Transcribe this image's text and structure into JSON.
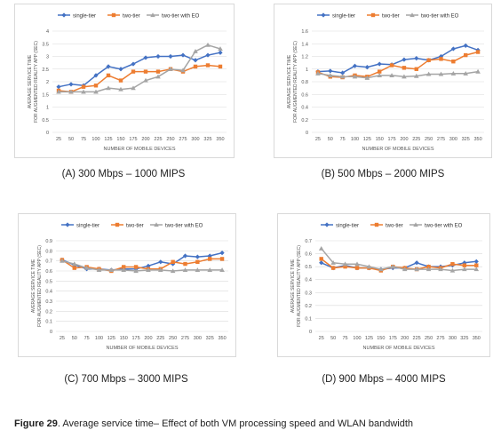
{
  "figure": {
    "label": "Figure 29",
    "text": ". Average service time– Effect of both VM processing speed and WLAN bandwidth"
  },
  "colors": {
    "single-tier": "#4472C4",
    "two-tier": "#ED7D31",
    "two-tier with EO": "#A5A5A5"
  },
  "chart_data": [
    {
      "type": "line",
      "caption": "(A) 300 Mbps – 1000 MIPS",
      "ylabel": "AVERAGE SERVICE TIME FOR AUGMENTED REALITY APP (SEC)",
      "ylabel_lines": [
        "AVERAGE SERVICE TIME",
        "FOR AUGMENTED REALITY APP (SEC)"
      ],
      "xlabel": "NUMBER OF MOBILE DEVICES",
      "x": [
        25,
        50,
        75,
        100,
        125,
        150,
        175,
        200,
        225,
        250,
        275,
        300,
        325,
        350
      ],
      "ylim": [
        0,
        4
      ],
      "yticks": [
        "0",
        "0.5",
        "1",
        "1.5",
        "2",
        "2.5",
        "3",
        "3.5",
        "4"
      ],
      "grid": true,
      "legend": "top",
      "series": [
        {
          "name": "single-tier",
          "values": [
            1.8,
            1.9,
            1.85,
            2.25,
            2.6,
            2.5,
            2.7,
            2.95,
            3.0,
            3.0,
            3.05,
            2.85,
            3.05,
            3.15
          ]
        },
        {
          "name": "two-tier",
          "values": [
            1.65,
            1.6,
            1.8,
            1.85,
            2.25,
            2.05,
            2.4,
            2.4,
            2.4,
            2.5,
            2.4,
            2.6,
            2.65,
            2.6
          ]
        },
        {
          "name": "two-tier with EO",
          "values": [
            1.6,
            1.6,
            1.6,
            1.6,
            1.75,
            1.7,
            1.75,
            2.05,
            2.2,
            2.5,
            2.45,
            3.2,
            3.45,
            3.3
          ]
        }
      ]
    },
    {
      "type": "line",
      "caption": "(B) 500 Mbps – 2000 MIPS",
      "ylabel": "AVERAGE SERVICE TIME FOR AUGMENTED REALITY APP (SEC)",
      "ylabel_lines": [
        "AVERAGE SERVICE TIME",
        "FOR AUGMENTED REALITY APP (SEC)"
      ],
      "xlabel": "NUMBER OF MOBILE DEVICES",
      "x": [
        25,
        50,
        75,
        100,
        125,
        150,
        175,
        200,
        225,
        250,
        275,
        300,
        325,
        350
      ],
      "ylim": [
        0,
        1.6
      ],
      "yticks": [
        "0",
        "0.2",
        "0.4",
        "0.6",
        "0.8",
        "1",
        "1.2",
        "1.4",
        "1.6"
      ],
      "grid": true,
      "legend": "top",
      "series": [
        {
          "name": "single-tier",
          "values": [
            0.96,
            0.97,
            0.94,
            1.05,
            1.03,
            1.08,
            1.07,
            1.15,
            1.17,
            1.14,
            1.2,
            1.32,
            1.37,
            1.3
          ]
        },
        {
          "name": "two-tier",
          "values": [
            0.95,
            0.88,
            0.87,
            0.9,
            0.88,
            0.96,
            1.06,
            1.02,
            1.0,
            1.14,
            1.16,
            1.12,
            1.22,
            1.27
          ]
        },
        {
          "name": "two-tier with EO",
          "values": [
            0.93,
            0.9,
            0.88,
            0.88,
            0.86,
            0.9,
            0.9,
            0.88,
            0.89,
            0.92,
            0.92,
            0.93,
            0.93,
            0.96
          ]
        }
      ]
    },
    {
      "type": "line",
      "caption": "(C) 700 Mbps – 3000 MIPS",
      "ylabel": "AVERAGE SERVICE TIME FOR AUGMENTED REALITY APP (SEC)",
      "ylabel_lines": [
        "AVERAGE SERVICE TIME",
        "FOR AUGMENTED REALITY APP (SEC)"
      ],
      "xlabel": "NUMBER OF MOBILE DEVICES",
      "x": [
        25,
        50,
        75,
        100,
        125,
        150,
        175,
        200,
        225,
        250,
        275,
        300,
        325,
        350
      ],
      "ylim": [
        0,
        0.9
      ],
      "yticks": [
        "0",
        "0.1",
        "0.2",
        "0.3",
        "0.4",
        "0.5",
        "0.6",
        "0.7",
        "0.8",
        "0.9"
      ],
      "grid": true,
      "legend": "top",
      "series": [
        {
          "name": "single-tier",
          "values": [
            0.71,
            0.66,
            0.62,
            0.62,
            0.61,
            0.62,
            0.62,
            0.65,
            0.69,
            0.67,
            0.75,
            0.74,
            0.75,
            0.78
          ]
        },
        {
          "name": "two-tier",
          "values": [
            0.71,
            0.63,
            0.64,
            0.62,
            0.6,
            0.64,
            0.64,
            0.62,
            0.62,
            0.69,
            0.67,
            0.69,
            0.72,
            0.72
          ]
        },
        {
          "name": "two-tier with EO",
          "values": [
            0.7,
            0.67,
            0.63,
            0.61,
            0.61,
            0.61,
            0.6,
            0.61,
            0.61,
            0.6,
            0.61,
            0.61,
            0.61,
            0.61
          ]
        }
      ]
    },
    {
      "type": "line",
      "caption": "(D) 900 Mbps – 4000 MIPS",
      "ylabel": "AVERAGE SERVICE TIME FOR AUGMENTED REALITY APP (SEC)",
      "ylabel_lines": [
        "AVERAGE SERVICE TIME",
        "FOR AUGMENTED REALITY APP (SEC)"
      ],
      "xlabel": "NUMBER OF MOBILE DEVICES",
      "x": [
        25,
        50,
        75,
        100,
        125,
        150,
        175,
        200,
        225,
        250,
        275,
        300,
        325,
        350
      ],
      "ylim": [
        0,
        0.7
      ],
      "yticks": [
        "0",
        "0.1",
        "0.2",
        "0.3",
        "0.4",
        "0.5",
        "0.6",
        "0.7"
      ],
      "grid": true,
      "legend": "top",
      "series": [
        {
          "name": "single-tier",
          "values": [
            0.53,
            0.49,
            0.51,
            0.49,
            0.49,
            0.48,
            0.49,
            0.49,
            0.53,
            0.5,
            0.5,
            0.51,
            0.53,
            0.54
          ]
        },
        {
          "name": "two-tier",
          "values": [
            0.56,
            0.49,
            0.5,
            0.49,
            0.49,
            0.47,
            0.5,
            0.49,
            0.48,
            0.5,
            0.49,
            0.52,
            0.51,
            0.51
          ]
        },
        {
          "name": "two-tier with EO",
          "values": [
            0.64,
            0.53,
            0.52,
            0.52,
            0.5,
            0.48,
            0.5,
            0.48,
            0.48,
            0.48,
            0.48,
            0.47,
            0.48,
            0.48
          ]
        }
      ]
    }
  ]
}
